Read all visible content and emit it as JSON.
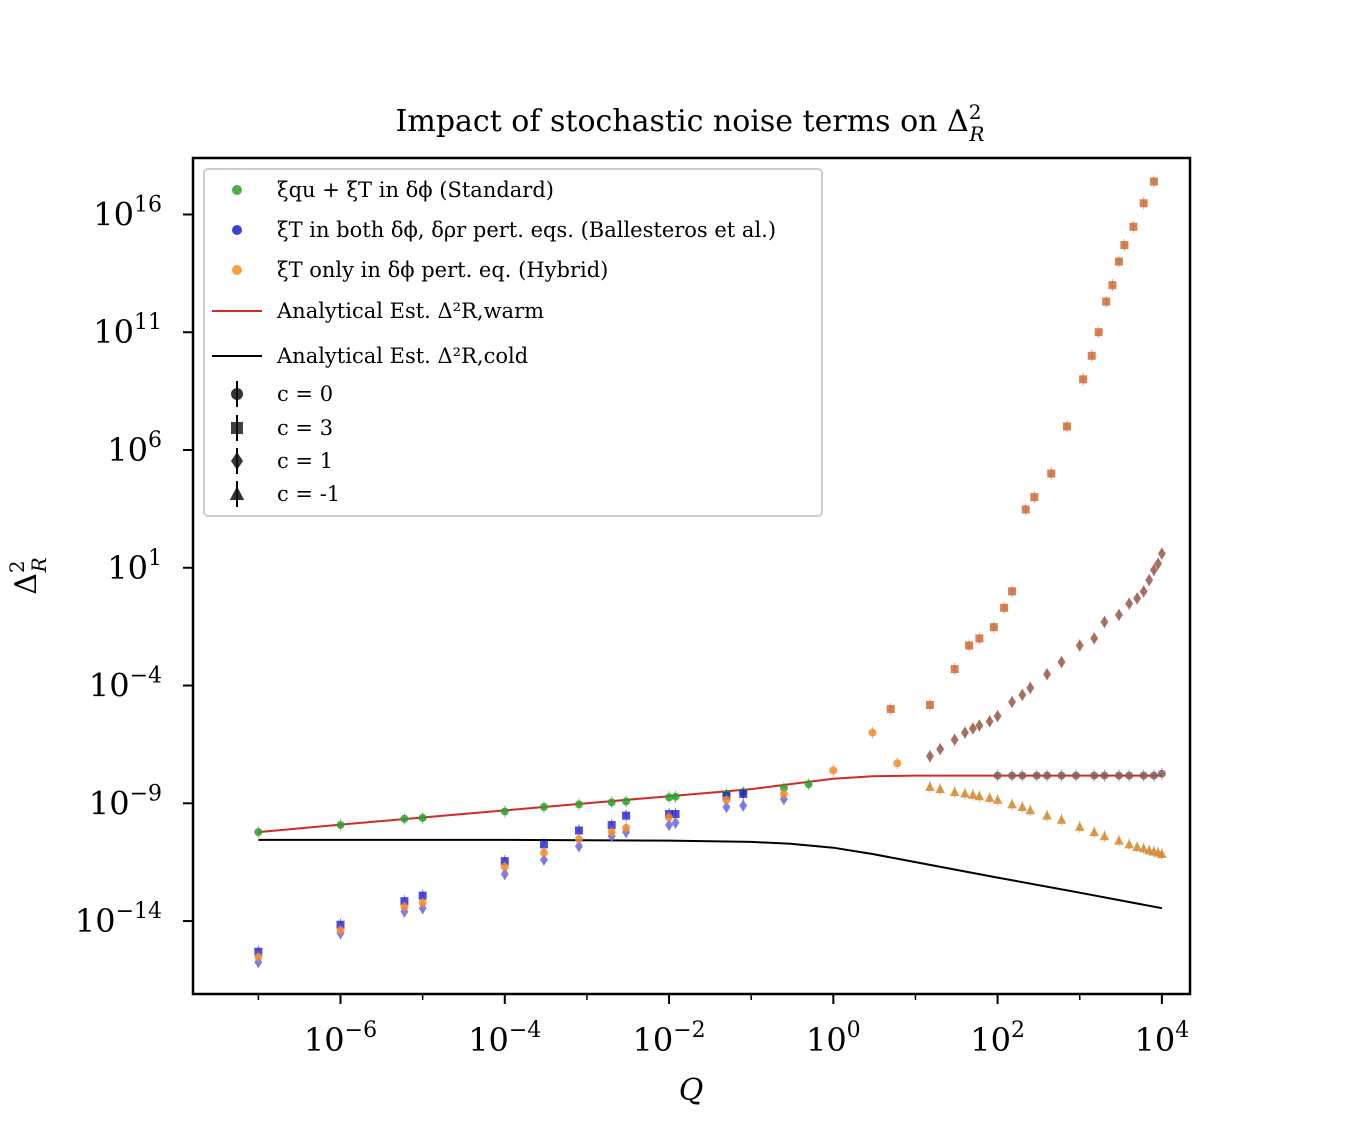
{
  "chart_data": {
    "type": "scatter",
    "title": "Impact of stochastic noise terms on Δ²_R",
    "title_parts": {
      "main": "Impact of stochastic noise terms on Δ",
      "sup": "2",
      "sub": "R"
    },
    "xlabel": "Q",
    "ylabel": "Δ²_R",
    "xscale": "log",
    "yscale": "log",
    "xlim": [
      1.6e-08,
      22000.0
    ],
    "ylim": [
      8e-18,
      2.5e+18
    ],
    "grid": false,
    "legend_position": "top-left",
    "xticks": [
      {
        "value": 1e-06,
        "base": "10",
        "exp": "−6"
      },
      {
        "value": 0.0001,
        "base": "10",
        "exp": "−4"
      },
      {
        "value": 0.01,
        "base": "10",
        "exp": "−2"
      },
      {
        "value": 1,
        "base": "10",
        "exp": "0"
      },
      {
        "value": 100,
        "base": "10",
        "exp": "2"
      },
      {
        "value": 10000,
        "base": "10",
        "exp": "4"
      }
    ],
    "yticks": [
      {
        "value": 1e-14,
        "base": "10",
        "exp": "−14"
      },
      {
        "value": 1e-09,
        "base": "10",
        "exp": "−9"
      },
      {
        "value": 0.0001,
        "base": "10",
        "exp": "−4"
      },
      {
        "value": 10,
        "base": "10",
        "exp": "1"
      },
      {
        "value": 1000000.0,
        "base": "10",
        "exp": "6"
      },
      {
        "value": 100000000000.0,
        "base": "10",
        "exp": "11"
      },
      {
        "value": 1e+16,
        "base": "10",
        "exp": "16"
      }
    ],
    "legend": [
      {
        "kind": "dot",
        "color": "#2ca02c",
        "label": "ξqu + ξT in δϕ (Standard)"
      },
      {
        "kind": "dot",
        "color": "#1f1fcc",
        "label": "ξT in both δϕ, δρr pert. eqs. (Ballesteros et al.)"
      },
      {
        "kind": "dot",
        "color": "#ff8c1a",
        "label": "ξT only in δϕ pert. eq. (Hybrid)"
      },
      {
        "kind": "line",
        "color": "#d62728",
        "label": "Analytical Est. Δ²R,warm"
      },
      {
        "kind": "line",
        "color": "#000000",
        "label": "Analytical Est. Δ²R,cold"
      },
      {
        "kind": "marker",
        "marker": "circle",
        "label": "c = 0"
      },
      {
        "kind": "marker",
        "marker": "square",
        "label": "c = 3"
      },
      {
        "kind": "marker",
        "marker": "diamond",
        "label": "c = 1"
      },
      {
        "kind": "marker",
        "marker": "triangle",
        "label": "c = -1"
      }
    ],
    "lines": [
      {
        "name": "Analytical Est. Δ²R,warm",
        "color": "#d62728",
        "x": [
          1e-07,
          1e-06,
          1e-05,
          0.0001,
          0.001,
          0.01,
          0.1,
          0.3,
          1,
          3,
          10,
          100,
          1000,
          10000
        ],
        "y": [
          6e-11,
          1.25e-10,
          2.5e-10,
          5e-10,
          1e-09,
          2e-09,
          4e-09,
          6.5e-09,
          1.1e-08,
          1.4e-08,
          1.5e-08,
          1.5e-08,
          1.5e-08,
          1.5e-08
        ]
      },
      {
        "name": "Analytical Est. Δ²R,cold",
        "color": "#000000",
        "x": [
          1e-07,
          0.0001,
          0.01,
          0.1,
          0.3,
          1,
          3,
          10,
          100,
          1000,
          10000
        ],
        "y": [
          2.8e-11,
          2.8e-11,
          2.6e-11,
          2.3e-11,
          1.9e-11,
          1.3e-11,
          7e-12,
          3.2e-12,
          7e-13,
          1.6e-13,
          3.5e-14
        ]
      }
    ],
    "markers": [
      {
        "name": "c = 0",
        "marker": "circle",
        "color": "#8a5a5a",
        "x": [
          100,
          150,
          200,
          300,
          400,
          600,
          900,
          1500,
          2000,
          3000,
          4000,
          6000,
          8000,
          10000
        ],
        "y": [
          1.5e-08,
          1.5e-08,
          1.5e-08,
          1.5e-08,
          1.5e-08,
          1.5e-08,
          1.5e-08,
          1.5e-08,
          1.5e-08,
          1.5e-08,
          1.5e-08,
          1.5e-08,
          1.5e-08,
          1.8e-08
        ]
      },
      {
        "name": "c = 3",
        "marker": "square",
        "color": "#c8642a",
        "x": [
          5,
          15,
          30,
          45,
          60,
          90,
          120,
          150,
          220,
          280,
          450,
          700,
          1100,
          1400,
          1700,
          2100,
          2500,
          3000,
          3500,
          4500,
          6000,
          8000
        ],
        "y": [
          1e-05,
          1.5e-05,
          0.0005,
          0.005,
          0.01,
          0.03,
          0.2,
          1.0,
          3000.0,
          10000.0,
          100000.0,
          10000000.0,
          1000000000.0,
          10000000000.0,
          100000000000.0,
          2000000000000.0,
          10000000000000.0,
          100000000000000.0,
          500000000000000.0,
          3000000000000000.0,
          3e+16,
          2.5e+17
        ]
      },
      {
        "name": "c = 1",
        "marker": "diamond",
        "color": "#9a5a4a",
        "x": [
          15,
          20,
          30,
          40,
          50,
          60,
          80,
          100,
          150,
          200,
          250,
          400,
          600,
          1000,
          1500,
          2000,
          3000,
          4000,
          5000,
          6000,
          7000,
          8000,
          9000,
          10000
        ],
        "y": [
          1e-07,
          2e-07,
          5e-07,
          1e-06,
          1.5e-06,
          2e-06,
          3e-06,
          5e-06,
          2e-05,
          4e-05,
          8e-05,
          0.0003,
          0.001,
          0.005,
          0.01,
          0.05,
          0.1,
          0.3,
          0.5,
          1,
          3,
          8,
          15,
          40
        ]
      },
      {
        "name": "c = -1",
        "marker": "triangle",
        "color": "#d2882e",
        "x": [
          15,
          20,
          30,
          40,
          50,
          60,
          80,
          100,
          150,
          200,
          250,
          400,
          600,
          1000,
          1500,
          2000,
          3000,
          4000,
          5000,
          6000,
          7000,
          8000,
          9000,
          10000
        ],
        "y": [
          5e-09,
          4e-09,
          3e-09,
          2.6e-09,
          2.3e-09,
          2e-09,
          1.7e-09,
          1.4e-09,
          9e-10,
          7e-10,
          5e-10,
          3e-10,
          2e-10,
          1e-10,
          6e-11,
          4e-11,
          2.6e-11,
          1.8e-11,
          1.4e-11,
          1.2e-11,
          1e-11,
          9e-12,
          8e-12,
          7e-12
        ]
      },
      {
        "name": "Standard",
        "marker": "circle",
        "color": "#2ca02c",
        "x": [
          1e-07,
          1e-06,
          6e-06,
          1e-05,
          0.0001,
          0.0003,
          0.0008,
          0.002,
          0.003,
          0.01,
          0.012,
          0.05,
          0.08,
          0.25,
          0.5
        ],
        "y": [
          6e-11,
          1.2e-10,
          2.2e-10,
          2.4e-10,
          4.5e-10,
          7e-10,
          9e-10,
          1.1e-09,
          1.2e-09,
          1.8e-09,
          1.9e-09,
          2.5e-09,
          3e-09,
          4.5e-09,
          6.5e-09
        ]
      },
      {
        "name": "Ballesteros et al.",
        "marker": "square",
        "color": "#2020cc",
        "x": [
          1e-07,
          1e-06,
          6e-06,
          1e-05,
          0.0001,
          0.0003,
          0.0008,
          0.002,
          0.003,
          0.01,
          0.012,
          0.05,
          0.08
        ],
        "y": [
          5e-16,
          7e-15,
          7e-14,
          1.2e-13,
          3.5e-12,
          1.8e-11,
          7e-11,
          1.2e-10,
          3e-10,
          3.5e-10,
          3.5e-10,
          2e-09,
          2.5e-09
        ]
      },
      {
        "name": "Ballesteros et al. (c=1)",
        "marker": "diamond",
        "color": "#6a6ae0",
        "x": [
          1e-07,
          1e-06,
          6e-06,
          1e-05,
          0.0001,
          0.0003,
          0.0008,
          0.002,
          0.003,
          0.01,
          0.012,
          0.05,
          0.08,
          0.25
        ],
        "y": [
          1.8e-16,
          3e-15,
          2.5e-14,
          3.5e-14,
          1e-12,
          4e-12,
          1.5e-11,
          4e-11,
          6e-11,
          1.2e-10,
          1.5e-10,
          7e-10,
          8e-10,
          1.5e-09
        ]
      },
      {
        "name": "Hybrid",
        "marker": "circle",
        "color": "#f58a2a",
        "x": [
          1e-07,
          1e-06,
          6e-06,
          1e-05,
          0.0001,
          0.0003,
          0.0008,
          0.002,
          0.003,
          0.01,
          0.05,
          0.25,
          1,
          3,
          6
        ],
        "y": [
          3e-16,
          4e-15,
          4e-14,
          6e-14,
          2e-12,
          8e-12,
          3e-11,
          6e-11,
          9e-11,
          2.5e-10,
          1.4e-09,
          2.5e-09,
          2.5e-08,
          1e-06,
          5e-08
        ]
      }
    ]
  }
}
